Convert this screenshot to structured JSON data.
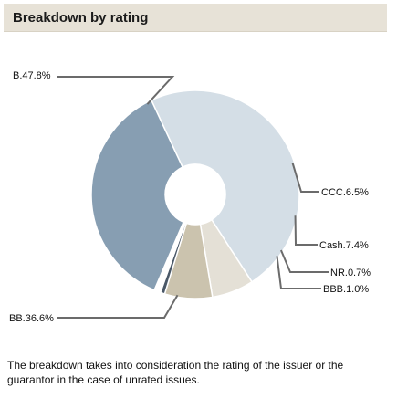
{
  "header": {
    "title": "Breakdown by rating"
  },
  "chart_data": {
    "type": "pie",
    "variant": "donut",
    "title": "Breakdown by rating",
    "slices": [
      {
        "label": "B",
        "value": 47.8,
        "display": "B.47.8%",
        "color": "#d4dee6",
        "label_side": "left"
      },
      {
        "label": "CCC",
        "value": 6.5,
        "display": "CCC.6.5%",
        "color": "#e4e0d6",
        "label_side": "right"
      },
      {
        "label": "Cash",
        "value": 7.4,
        "display": "Cash.7.4%",
        "color": "#cbc3ae",
        "label_side": "right"
      },
      {
        "label": "NR",
        "value": 0.7,
        "display": "NR.0.7%",
        "color": "#4a5868",
        "label_side": "right"
      },
      {
        "label": "BBB",
        "value": 1.0,
        "display": "BBB.1.0%",
        "color": "#ffffff",
        "label_side": "right"
      },
      {
        "label": "BB",
        "value": 36.6,
        "display": "BB.36.6%",
        "color": "#879eb2",
        "label_side": "left"
      }
    ]
  },
  "note": "The breakdown takes into consideration the rating of the issuer or the guarantor in the case of unrated issues."
}
